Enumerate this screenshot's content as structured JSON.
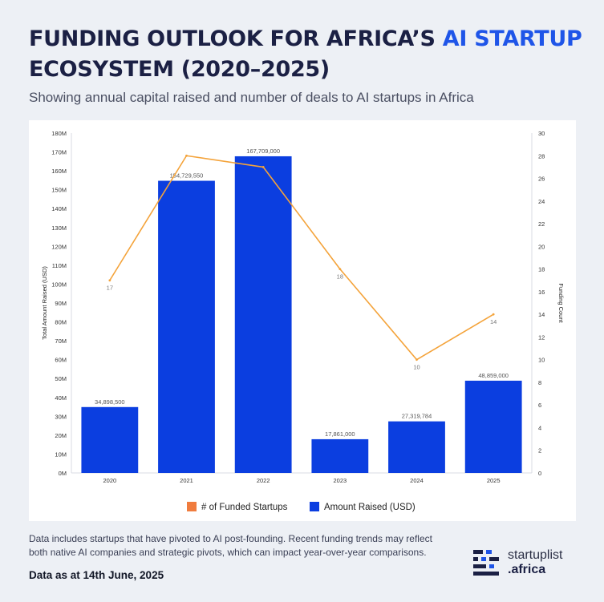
{
  "header": {
    "title_part1": "FUNDING OUTLOOK FOR AFRICA’S ",
    "title_highlight": "AI STARTUP",
    "title_part2": " ECOSYSTEM (2020–2025)",
    "subtitle": "Showing annual capital raised and number of deals to AI startups in Africa"
  },
  "colors": {
    "bar": "#0b3ee0",
    "line": "#f4a33a",
    "highlight": "#1f55e8",
    "legend_line": "#f07c3e"
  },
  "chart_data": {
    "type": "bar",
    "categories": [
      "2020",
      "2021",
      "2022",
      "2023",
      "2024",
      "2025"
    ],
    "series": [
      {
        "name": "Amount Raised (USD)",
        "type": "bar",
        "axis": "left",
        "values": [
          34898500,
          154729550,
          167709000,
          17861000,
          27319784,
          48859000
        ],
        "labels": [
          "34,898,500",
          "154,729,550",
          "167,709,000",
          "17,861,000",
          "27,319,784",
          "48,859,000"
        ]
      },
      {
        "name": "# of Funded Startups",
        "type": "line",
        "axis": "right",
        "values": [
          17,
          28,
          27,
          18,
          10,
          14
        ],
        "labels": [
          "17",
          "",
          "",
          "18",
          "10",
          "14"
        ]
      }
    ],
    "ylabel": "Total Amount Raised (USD)",
    "ylabel_right": "Funding Count",
    "ylim": [
      0,
      180000000
    ],
    "ylim_right": [
      0,
      30
    ],
    "yticks": [
      "0M",
      "10M",
      "20M",
      "30M",
      "40M",
      "50M",
      "60M",
      "70M",
      "80M",
      "90M",
      "100M",
      "110M",
      "120M",
      "130M",
      "140M",
      "150M",
      "160M",
      "170M",
      "180M"
    ],
    "yticks_right": [
      "0",
      "2",
      "4",
      "6",
      "8",
      "10",
      "12",
      "14",
      "16",
      "18",
      "20",
      "22",
      "24",
      "26",
      "28",
      "30"
    ],
    "legend": [
      "# of Funded Startups",
      "Amount Raised (USD)"
    ],
    "legend_position": "bottom",
    "grid": false
  },
  "footer": {
    "note": "Data includes startups that have pivoted to AI post-founding. Recent funding trends may reflect both native AI companies and strategic pivots, which can impact year-over-year comparisons.",
    "as_of": "Data as at 14th June,  2025",
    "logo_name": "startuplist",
    "logo_tld": ".africa"
  }
}
